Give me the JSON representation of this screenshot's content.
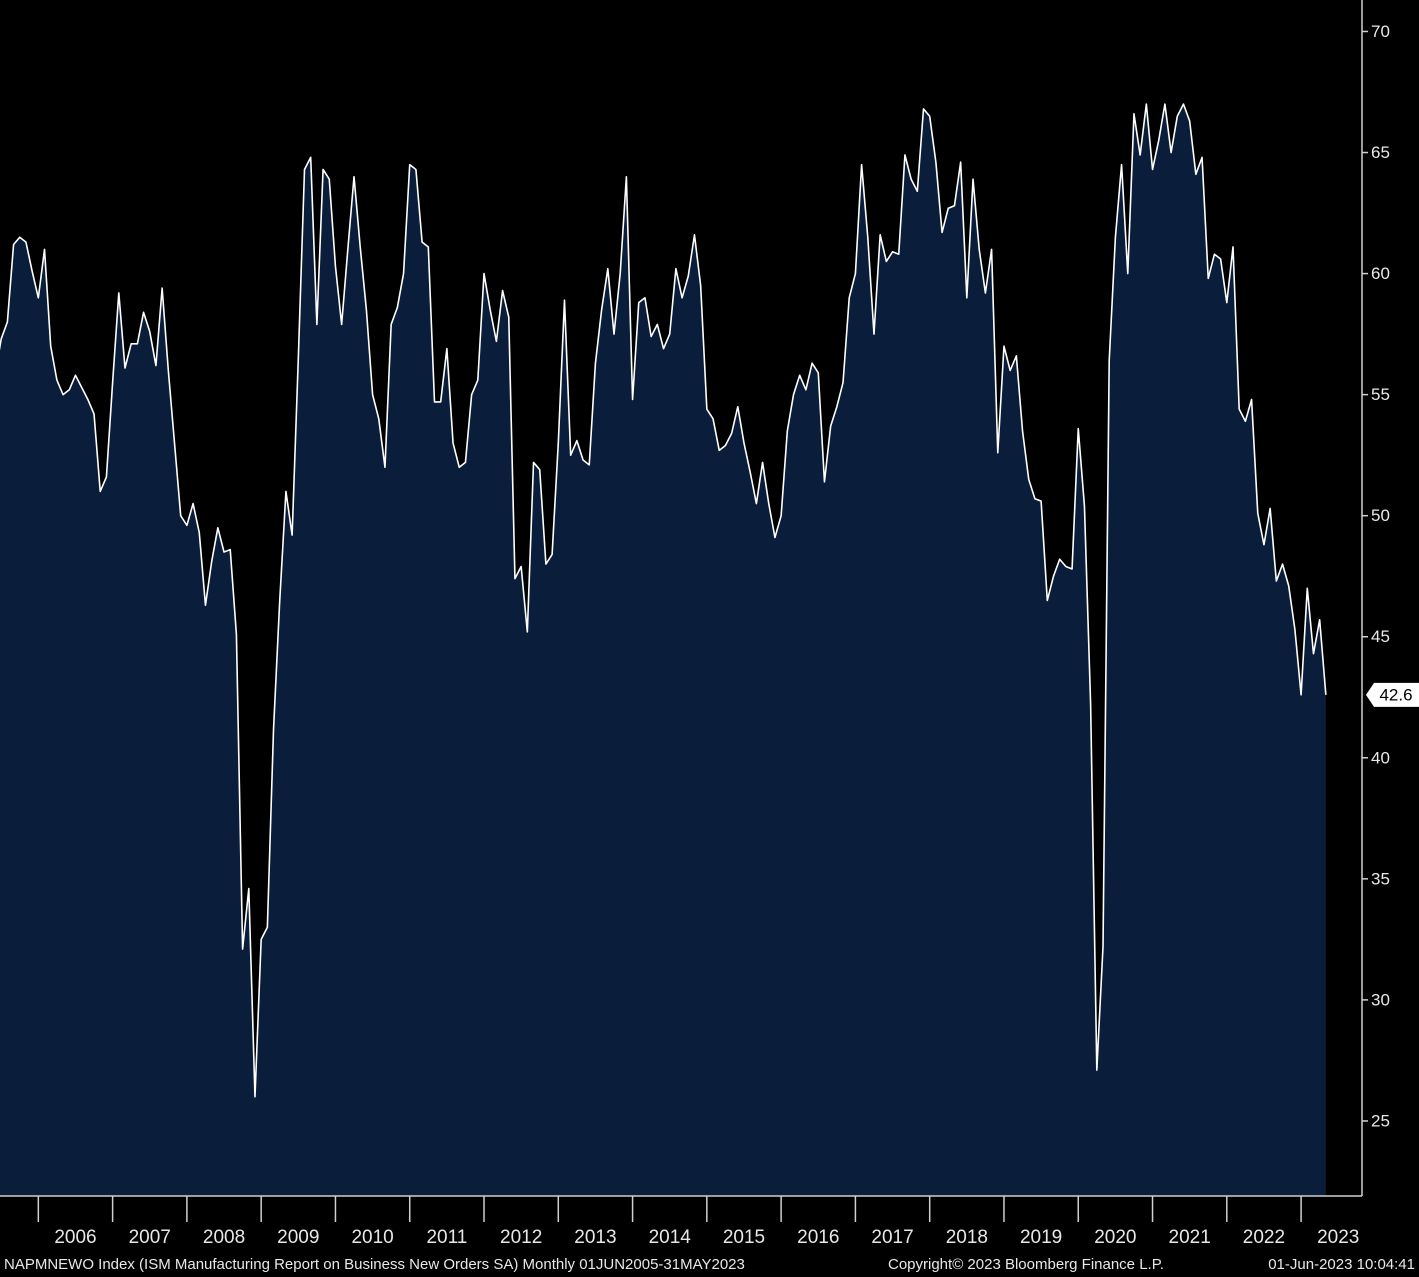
{
  "chart_data": {
    "type": "area",
    "source_note": "NAPMNEWO Index (ISM Manufacturing Report on Business New Orders SA)  Monthly 01JUN2005-31MAY2023",
    "copyright": "Copyright© 2023 Bloomberg Finance L.P.",
    "timestamp": "01-Jun-2023 10:04:41",
    "color": "#ffffff",
    "fill_color": "#0a1d3a",
    "x": [
      "2005-06",
      "2005-07",
      "2005-08",
      "2005-09",
      "2005-10",
      "2005-11",
      "2005-12",
      "2006-01",
      "2006-02",
      "2006-03",
      "2006-04",
      "2006-05",
      "2006-06",
      "2006-07",
      "2006-08",
      "2006-09",
      "2006-10",
      "2006-11",
      "2006-12",
      "2007-01",
      "2007-02",
      "2007-03",
      "2007-04",
      "2007-05",
      "2007-06",
      "2007-07",
      "2007-08",
      "2007-09",
      "2007-10",
      "2007-11",
      "2007-12",
      "2008-01",
      "2008-02",
      "2008-03",
      "2008-04",
      "2008-05",
      "2008-06",
      "2008-07",
      "2008-08",
      "2008-09",
      "2008-10",
      "2008-11",
      "2008-12",
      "2009-01",
      "2009-02",
      "2009-03",
      "2009-04",
      "2009-05",
      "2009-06",
      "2009-07",
      "2009-08",
      "2009-09",
      "2009-10",
      "2009-11",
      "2009-12",
      "2010-01",
      "2010-02",
      "2010-03",
      "2010-04",
      "2010-05",
      "2010-06",
      "2010-07",
      "2010-08",
      "2010-09",
      "2010-10",
      "2010-11",
      "2010-12",
      "2011-01",
      "2011-02",
      "2011-03",
      "2011-04",
      "2011-05",
      "2011-06",
      "2011-07",
      "2011-08",
      "2011-09",
      "2011-10",
      "2011-11",
      "2011-12",
      "2012-01",
      "2012-02",
      "2012-03",
      "2012-04",
      "2012-05",
      "2012-06",
      "2012-07",
      "2012-08",
      "2012-09",
      "2012-10",
      "2012-11",
      "2012-12",
      "2013-01",
      "2013-02",
      "2013-03",
      "2013-04",
      "2013-05",
      "2013-06",
      "2013-07",
      "2013-08",
      "2013-09",
      "2013-10",
      "2013-11",
      "2013-12",
      "2014-01",
      "2014-02",
      "2014-03",
      "2014-04",
      "2014-05",
      "2014-06",
      "2014-07",
      "2014-08",
      "2014-09",
      "2014-10",
      "2014-11",
      "2014-12",
      "2015-01",
      "2015-02",
      "2015-03",
      "2015-04",
      "2015-05",
      "2015-06",
      "2015-07",
      "2015-08",
      "2015-09",
      "2015-10",
      "2015-11",
      "2015-12",
      "2016-01",
      "2016-02",
      "2016-03",
      "2016-04",
      "2016-05",
      "2016-06",
      "2016-07",
      "2016-08",
      "2016-09",
      "2016-10",
      "2016-11",
      "2016-12",
      "2017-01",
      "2017-02",
      "2017-03",
      "2017-04",
      "2017-05",
      "2017-06",
      "2017-07",
      "2017-08",
      "2017-09",
      "2017-10",
      "2017-11",
      "2017-12",
      "2018-01",
      "2018-02",
      "2018-03",
      "2018-04",
      "2018-05",
      "2018-06",
      "2018-07",
      "2018-08",
      "2018-09",
      "2018-10",
      "2018-11",
      "2018-12",
      "2019-01",
      "2019-02",
      "2019-03",
      "2019-04",
      "2019-05",
      "2019-06",
      "2019-07",
      "2019-08",
      "2019-09",
      "2019-10",
      "2019-11",
      "2019-12",
      "2020-01",
      "2020-02",
      "2020-03",
      "2020-04",
      "2020-05",
      "2020-06",
      "2020-07",
      "2020-08",
      "2020-09",
      "2020-10",
      "2020-11",
      "2020-12",
      "2021-01",
      "2021-02",
      "2021-03",
      "2021-04",
      "2021-05",
      "2021-06",
      "2021-07",
      "2021-08",
      "2021-09",
      "2021-10",
      "2021-11",
      "2021-12",
      "2022-01",
      "2022-02",
      "2022-03",
      "2022-04",
      "2022-05",
      "2022-06",
      "2022-07",
      "2022-08",
      "2022-09",
      "2022-10",
      "2022-11",
      "2022-12",
      "2023-01",
      "2023-02",
      "2023-03",
      "2023-04",
      "2023-05"
    ],
    "values": [
      55.8,
      57.3,
      58.0,
      61.2,
      61.5,
      61.3,
      60.1,
      59.0,
      61.0,
      57.0,
      55.6,
      55.0,
      55.2,
      55.8,
      55.3,
      54.8,
      54.2,
      51.0,
      51.6,
      55.5,
      59.2,
      56.1,
      57.1,
      57.1,
      58.4,
      57.6,
      56.2,
      59.4,
      56.0,
      53.0,
      50.0,
      49.6,
      50.5,
      49.3,
      46.3,
      48.1,
      49.5,
      48.5,
      48.6,
      45.1,
      32.1,
      34.6,
      26.0,
      32.5,
      33.0,
      41.2,
      46.5,
      51.0,
      49.2,
      56.5,
      64.3,
      64.8,
      57.9,
      64.3,
      63.9,
      60.3,
      57.9,
      61.0,
      64.0,
      61.1,
      58.5,
      55.0,
      54.0,
      52.0,
      57.9,
      58.6,
      60.0,
      64.5,
      64.3,
      61.3,
      61.1,
      54.7,
      54.7,
      56.9,
      53.0,
      52.0,
      52.2,
      55.0,
      55.6,
      60.0,
      58.5,
      57.2,
      59.3,
      58.2,
      47.4,
      47.9,
      45.2,
      52.2,
      51.9,
      48.0,
      48.4,
      53.0,
      58.9,
      52.5,
      53.1,
      52.3,
      52.1,
      56.3,
      58.5,
      60.2,
      57.5,
      60.0,
      64.0,
      54.8,
      58.8,
      59.0,
      57.4,
      57.9,
      56.9,
      57.5,
      60.2,
      59.0,
      59.9,
      61.6,
      59.5,
      54.4,
      54.0,
      52.7,
      52.9,
      53.4,
      54.5,
      53.0,
      51.8,
      50.5,
      52.2,
      50.5,
      49.1,
      50.0,
      53.5,
      55.0,
      55.8,
      55.2,
      56.3,
      55.9,
      51.4,
      53.7,
      54.5,
      55.5,
      59.0,
      60.0,
      64.5,
      61.5,
      57.5,
      61.6,
      60.5,
      60.9,
      60.8,
      64.9,
      63.9,
      63.4,
      66.8,
      66.5,
      64.6,
      61.7,
      62.7,
      62.8,
      64.6,
      59.0,
      63.9,
      61.0,
      59.2,
      61.0,
      52.6,
      57.0,
      56.0,
      56.6,
      53.5,
      51.5,
      50.7,
      50.6,
      46.5,
      47.5,
      48.2,
      47.9,
      47.8,
      53.6,
      50.4,
      42.2,
      27.1,
      32.2,
      56.4,
      61.5,
      64.5,
      60.0,
      66.6,
      64.9,
      67.0,
      64.3,
      65.5,
      67.0,
      65.0,
      66.5,
      67.0,
      66.3,
      64.1,
      64.8,
      59.8,
      60.8,
      60.6,
      58.8,
      61.1,
      54.4,
      53.9,
      54.8,
      50.1,
      48.8,
      50.3,
      47.3,
      48.0,
      47.1,
      45.3,
      42.6,
      47.0,
      44.3,
      45.7,
      42.6
    ],
    "ylim": [
      21.9,
      71.3
    ],
    "yticks": [
      25,
      30,
      35,
      40,
      45,
      50,
      55,
      60,
      65,
      70
    ],
    "xticks": [
      {
        "value": "2006-01",
        "label": "2006"
      },
      {
        "value": "2007-01",
        "label": "2007"
      },
      {
        "value": "2008-01",
        "label": "2008"
      },
      {
        "value": "2009-01",
        "label": "2009"
      },
      {
        "value": "2010-01",
        "label": "2010"
      },
      {
        "value": "2011-01",
        "label": "2011"
      },
      {
        "value": "2012-01",
        "label": "2012"
      },
      {
        "value": "2013-01",
        "label": "2013"
      },
      {
        "value": "2014-01",
        "label": "2014"
      },
      {
        "value": "2015-01",
        "label": "2015"
      },
      {
        "value": "2016-01",
        "label": "2016"
      },
      {
        "value": "2017-01",
        "label": "2017"
      },
      {
        "value": "2018-01",
        "label": "2018"
      },
      {
        "value": "2019-01",
        "label": "2019"
      },
      {
        "value": "2020-01",
        "label": "2020"
      },
      {
        "value": "2021-01",
        "label": "2021"
      },
      {
        "value": "2022-01",
        "label": "2022"
      },
      {
        "value": "2023-01",
        "label": "2023"
      }
    ]
  }
}
